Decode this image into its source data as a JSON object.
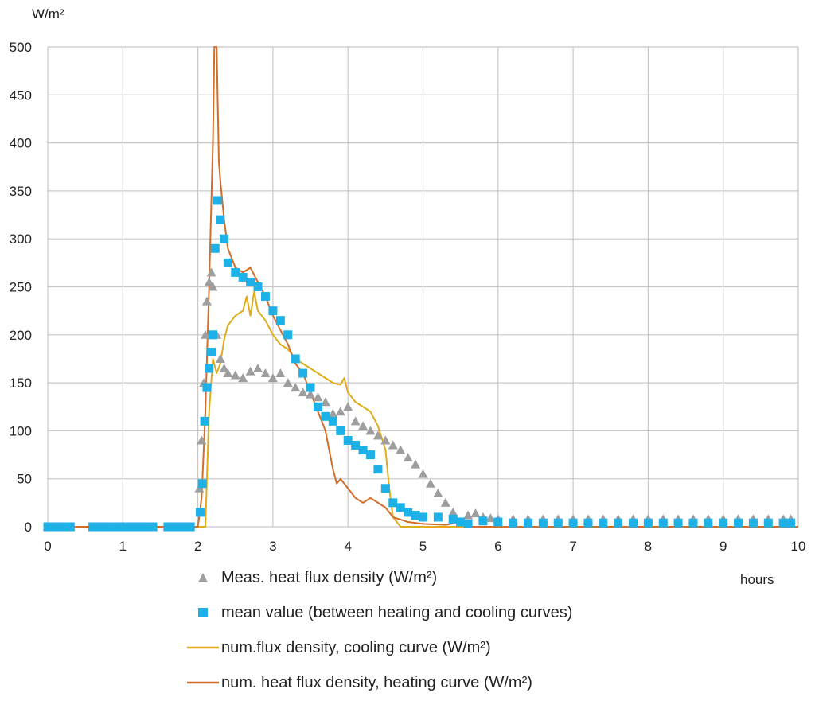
{
  "chart_data": {
    "type": "scatter",
    "ylabel": "W/m²",
    "xlabel": "hours",
    "xlim": [
      0,
      10
    ],
    "ylim": [
      0,
      500
    ],
    "xticks": [
      0,
      1,
      2,
      3,
      4,
      5,
      6,
      7,
      8,
      9,
      10
    ],
    "yticks": [
      0,
      50,
      100,
      150,
      200,
      250,
      300,
      350,
      400,
      450,
      500
    ],
    "grid": true,
    "legend_position": "bottom",
    "colors": {
      "measured": "#9e9e9e",
      "mean": "#1eb1e7",
      "cooling": "#e0ac19",
      "heating": "#d26e2a",
      "grid": "#c8c8c8"
    },
    "series": [
      {
        "name": "Meas. heat flux density (W/m²)",
        "marker": "triangle",
        "x": [
          0.0,
          0.1,
          0.2,
          0.3,
          0.6,
          0.7,
          0.8,
          0.9,
          1.0,
          1.1,
          1.2,
          1.3,
          1.4,
          1.6,
          1.7,
          1.8,
          1.9,
          2.02,
          2.05,
          2.08,
          2.1,
          2.12,
          2.15,
          2.18,
          2.2,
          2.25,
          2.3,
          2.35,
          2.4,
          2.5,
          2.6,
          2.7,
          2.8,
          2.9,
          3.0,
          3.1,
          3.2,
          3.3,
          3.4,
          3.5,
          3.6,
          3.7,
          3.8,
          3.9,
          4.0,
          4.1,
          4.2,
          4.3,
          4.4,
          4.5,
          4.6,
          4.7,
          4.8,
          4.9,
          5.0,
          5.1,
          5.2,
          5.3,
          5.4,
          5.5,
          5.6,
          5.7,
          5.8,
          5.9,
          6.0,
          6.2,
          6.4,
          6.6,
          6.8,
          7.0,
          7.2,
          7.4,
          7.6,
          7.8,
          8.0,
          8.2,
          8.4,
          8.6,
          8.8,
          9.0,
          9.2,
          9.4,
          9.6,
          9.8,
          9.9
        ],
        "y": [
          0,
          0,
          0,
          0,
          0,
          0,
          0,
          0,
          0,
          0,
          0,
          0,
          0,
          0,
          0,
          0,
          0,
          40,
          90,
          150,
          200,
          235,
          255,
          265,
          250,
          200,
          175,
          165,
          160,
          158,
          155,
          162,
          165,
          160,
          155,
          160,
          150,
          145,
          140,
          138,
          135,
          130,
          118,
          120,
          125,
          110,
          105,
          100,
          95,
          90,
          85,
          80,
          72,
          65,
          55,
          45,
          35,
          25,
          15,
          5,
          12,
          14,
          10,
          9,
          8,
          8,
          8,
          8,
          8,
          8,
          8,
          8,
          8,
          8,
          8,
          8,
          8,
          8,
          8,
          8,
          8,
          8,
          8,
          8,
          8
        ]
      },
      {
        "name": "mean value (between heating and cooling curves)",
        "marker": "square",
        "x": [
          0.0,
          0.1,
          0.2,
          0.3,
          0.6,
          0.7,
          0.8,
          0.9,
          1.0,
          1.1,
          1.2,
          1.3,
          1.4,
          1.6,
          1.7,
          1.8,
          1.9,
          2.03,
          2.06,
          2.09,
          2.12,
          2.15,
          2.18,
          2.2,
          2.23,
          2.26,
          2.3,
          2.35,
          2.4,
          2.5,
          2.6,
          2.7,
          2.8,
          2.9,
          3.0,
          3.1,
          3.2,
          3.3,
          3.4,
          3.5,
          3.6,
          3.7,
          3.8,
          3.9,
          4.0,
          4.1,
          4.2,
          4.3,
          4.4,
          4.5,
          4.6,
          4.7,
          4.8,
          4.9,
          5.0,
          5.2,
          5.4,
          5.5,
          5.6,
          5.8,
          6.0,
          6.2,
          6.4,
          6.6,
          6.8,
          7.0,
          7.2,
          7.4,
          7.6,
          7.8,
          8.0,
          8.2,
          8.4,
          8.6,
          8.8,
          9.0,
          9.2,
          9.4,
          9.6,
          9.8,
          9.9
        ],
        "y": [
          0,
          0,
          0,
          0,
          0,
          0,
          0,
          0,
          0,
          0,
          0,
          0,
          0,
          0,
          0,
          0,
          0,
          15,
          45,
          110,
          145,
          165,
          182,
          200,
          290,
          340,
          320,
          300,
          275,
          265,
          260,
          255,
          250,
          240,
          225,
          215,
          200,
          175,
          160,
          145,
          125,
          115,
          110,
          100,
          90,
          85,
          80,
          75,
          60,
          40,
          25,
          20,
          15,
          12,
          10,
          10,
          8,
          5,
          3,
          6,
          5,
          4,
          4,
          4,
          4,
          4,
          4,
          4,
          4,
          4,
          4,
          4,
          4,
          4,
          4,
          4,
          4,
          4,
          4,
          4,
          4
        ]
      },
      {
        "name": "num.flux density, cooling curve  (W/m²)",
        "marker": "line",
        "x": [
          0,
          2.0,
          2.1,
          2.15,
          2.2,
          2.25,
          2.3,
          2.35,
          2.4,
          2.5,
          2.6,
          2.65,
          2.7,
          2.75,
          2.8,
          2.9,
          3.0,
          3.1,
          3.2,
          3.3,
          3.4,
          3.5,
          3.6,
          3.7,
          3.8,
          3.9,
          3.95,
          4.0,
          4.1,
          4.2,
          4.3,
          4.4,
          4.5,
          4.55,
          4.6,
          4.7,
          5.0,
          10.0
        ],
        "y": [
          0,
          0,
          0,
          120,
          175,
          160,
          170,
          195,
          210,
          220,
          225,
          240,
          220,
          245,
          225,
          215,
          200,
          190,
          185,
          175,
          170,
          165,
          160,
          155,
          150,
          148,
          155,
          140,
          130,
          125,
          120,
          105,
          80,
          40,
          10,
          0,
          0,
          0
        ]
      },
      {
        "name": "num. heat flux density, heating curve (W/m²)",
        "marker": "line",
        "x": [
          0,
          2.0,
          2.05,
          2.1,
          2.15,
          2.2,
          2.22,
          2.25,
          2.28,
          2.3,
          2.35,
          2.4,
          2.5,
          2.6,
          2.7,
          2.8,
          2.9,
          3.0,
          3.1,
          3.2,
          3.3,
          3.4,
          3.5,
          3.6,
          3.65,
          3.7,
          3.75,
          3.8,
          3.85,
          3.9,
          4.0,
          4.1,
          4.2,
          4.3,
          4.4,
          4.5,
          4.6,
          4.8,
          5.0,
          5.3,
          5.5,
          5.55,
          6.0,
          10.0
        ],
        "y": [
          0,
          0,
          30,
          120,
          250,
          400,
          500,
          500,
          380,
          360,
          320,
          290,
          270,
          265,
          270,
          255,
          240,
          220,
          205,
          190,
          170,
          160,
          140,
          120,
          110,
          100,
          80,
          60,
          45,
          50,
          40,
          30,
          25,
          30,
          25,
          20,
          10,
          5,
          3,
          2,
          5,
          0,
          0,
          0
        ]
      }
    ]
  },
  "legend": [
    {
      "label": "Meas. heat flux density (W/m²)",
      "icon": "triangle-marker"
    },
    {
      "label": "mean value (between heating and cooling curves)",
      "icon": "square-marker"
    },
    {
      "label": "num.flux density, cooling curve  (W/m²)",
      "icon": "line-marker"
    },
    {
      "label": "num. heat flux density, heating curve (W/m²)",
      "icon": "line-marker"
    }
  ]
}
